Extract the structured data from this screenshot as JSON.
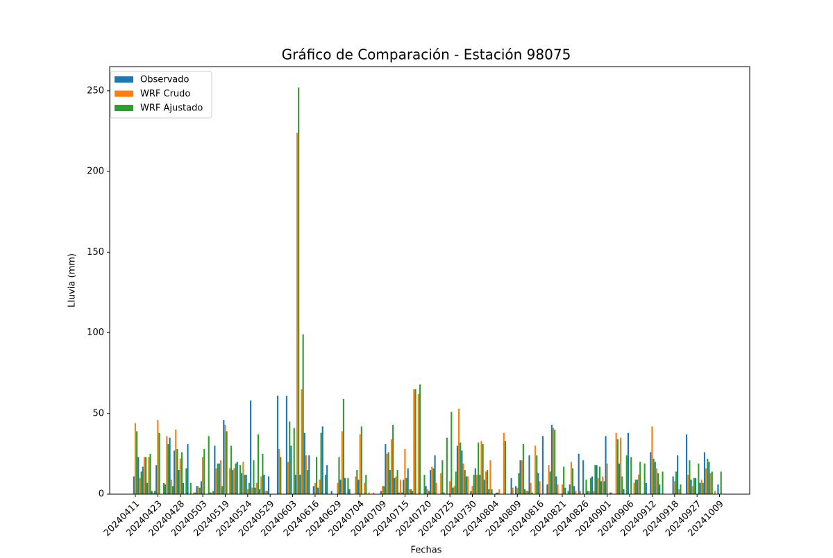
{
  "chart_data": {
    "type": "bar",
    "title": "Gráfico de Comparación - Estación 98075",
    "xlabel": "Fechas",
    "ylabel": "Lluvia (mm)",
    "categories": [
      "20240411",
      null,
      null,
      null,
      null,
      "20240423",
      null,
      null,
      null,
      null,
      "20240428",
      null,
      null,
      null,
      null,
      "20240503",
      null,
      null,
      null,
      null,
      "20240519",
      null,
      null,
      null,
      null,
      "20240524",
      null,
      null,
      null,
      null,
      "20240529",
      null,
      null,
      null,
      null,
      "20240603",
      null,
      null,
      null,
      null,
      "20240616",
      null,
      null,
      null,
      null,
      "20240629",
      null,
      null,
      null,
      null,
      "20240704",
      null,
      null,
      null,
      null,
      "20240709",
      null,
      null,
      null,
      null,
      "20240715",
      null,
      null,
      null,
      null,
      "20240720",
      null,
      null,
      null,
      null,
      "20240725",
      null,
      null,
      null,
      null,
      "20240730",
      null,
      null,
      null,
      null,
      "20240804",
      null,
      null,
      null,
      null,
      "20240809",
      null,
      null,
      null,
      null,
      "20240816",
      null,
      null,
      null,
      null,
      "20240821",
      null,
      null,
      null,
      null,
      "20240826",
      null,
      null,
      null,
      null,
      "20240901",
      null,
      null,
      null,
      null,
      "20240906",
      null,
      null,
      null,
      null,
      "20240912",
      null,
      null,
      null,
      null,
      "20240918",
      null,
      null,
      null,
      null,
      "20240927",
      null,
      null,
      null,
      null,
      "20241009",
      null
    ],
    "series": [
      {
        "name": "Observado",
        "color": "#1f77b4",
        "values": [
          11,
          23,
          17,
          7,
          2,
          18,
          0,
          6,
          35,
          27,
          15,
          7,
          31,
          0,
          5,
          8,
          0,
          1,
          30,
          19,
          46,
          0,
          15,
          20,
          13,
          12,
          58,
          4,
          3,
          12,
          11,
          0,
          61,
          0,
          61,
          30,
          12,
          12,
          38,
          24,
          5,
          4,
          42,
          18,
          2,
          0,
          9,
          10,
          3,
          0,
          9,
          0,
          0,
          0,
          0,
          2,
          31,
          15,
          10,
          1,
          9,
          16,
          2,
          0,
          0,
          5,
          15,
          24,
          0,
          1,
          0,
          4,
          30,
          27,
          11,
          2,
          16,
          12,
          9,
          3,
          0,
          1,
          0,
          0,
          10,
          5,
          21,
          3,
          24,
          0,
          13,
          36,
          6,
          43,
          11,
          0,
          4,
          6,
          5,
          25,
          21,
          2,
          11,
          18,
          8,
          36,
          1,
          0,
          19,
          3,
          38,
          0,
          9,
          0,
          7,
          26,
          20,
          6,
          0,
          0,
          11,
          24,
          0,
          37,
          9,
          10,
          7,
          26,
          20,
          0,
          6,
          0
        ]
      },
      {
        "name": "WRF Crudo",
        "color": "#ff7f0e",
        "values": [
          44,
          10,
          23,
          23,
          1,
          46,
          0,
          36,
          9,
          40,
          22,
          0,
          0,
          1,
          5,
          23,
          0,
          1,
          16,
          21,
          43,
          16,
          16,
          0,
          20,
          3,
          4,
          7,
          11,
          2,
          0,
          0,
          28,
          0,
          20,
          0,
          224,
          65,
          24,
          0,
          7,
          9,
          0,
          0,
          0,
          7,
          39,
          0,
          0,
          11,
          37,
          7,
          1,
          1,
          0,
          5,
          25,
          34,
          11,
          9,
          28,
          3,
          65,
          62,
          0,
          3,
          17,
          7,
          13,
          0,
          8,
          5,
          53,
          19,
          11,
          5,
          12,
          33,
          14,
          21,
          0,
          3,
          38,
          0,
          4,
          4,
          21,
          2,
          7,
          30,
          8,
          0,
          18,
          41,
          6,
          6,
          0,
          20,
          2,
          2,
          0,
          2,
          2,
          10,
          11,
          19,
          1,
          38,
          35,
          0,
          0,
          7,
          12,
          0,
          0,
          42,
          16,
          0,
          0,
          0,
          8,
          3,
          0,
          12,
          5,
          0,
          9,
          16,
          13,
          2,
          0,
          0
        ]
      },
      {
        "name": "WRF Ajustado",
        "color": "#2ca02c",
        "values": [
          39,
          14,
          23,
          25,
          2,
          38,
          7,
          31,
          5,
          28,
          26,
          16,
          7,
          1,
          4,
          28,
          36,
          2,
          19,
          5,
          39,
          30,
          19,
          18,
          12,
          7,
          21,
          37,
          25,
          2,
          0,
          0,
          23,
          0,
          45,
          41,
          252,
          99,
          15,
          0,
          23,
          38,
          12,
          0,
          0,
          23,
          59,
          10,
          0,
          15,
          42,
          12,
          0,
          0,
          0,
          5,
          26,
          43,
          15,
          1,
          10,
          3,
          65,
          68,
          12,
          2,
          16,
          0,
          21,
          35,
          51,
          14,
          32,
          15,
          0,
          12,
          32,
          31,
          15,
          3,
          1,
          0,
          33,
          0,
          0,
          13,
          31,
          2,
          1,
          24,
          0,
          0,
          14,
          40,
          0,
          17,
          2,
          16,
          0,
          0,
          9,
          10,
          18,
          17,
          8,
          0,
          0,
          34,
          11,
          24,
          23,
          9,
          20,
          19,
          0,
          22,
          13,
          14,
          0,
          0,
          14,
          6,
          0,
          21,
          10,
          19,
          7,
          22,
          14,
          0,
          14,
          0
        ]
      }
    ],
    "ylim": [
      0,
      265
    ],
    "yticks": [
      0,
      50,
      100,
      150,
      200,
      250
    ],
    "grid": false,
    "legend": "upper left"
  }
}
